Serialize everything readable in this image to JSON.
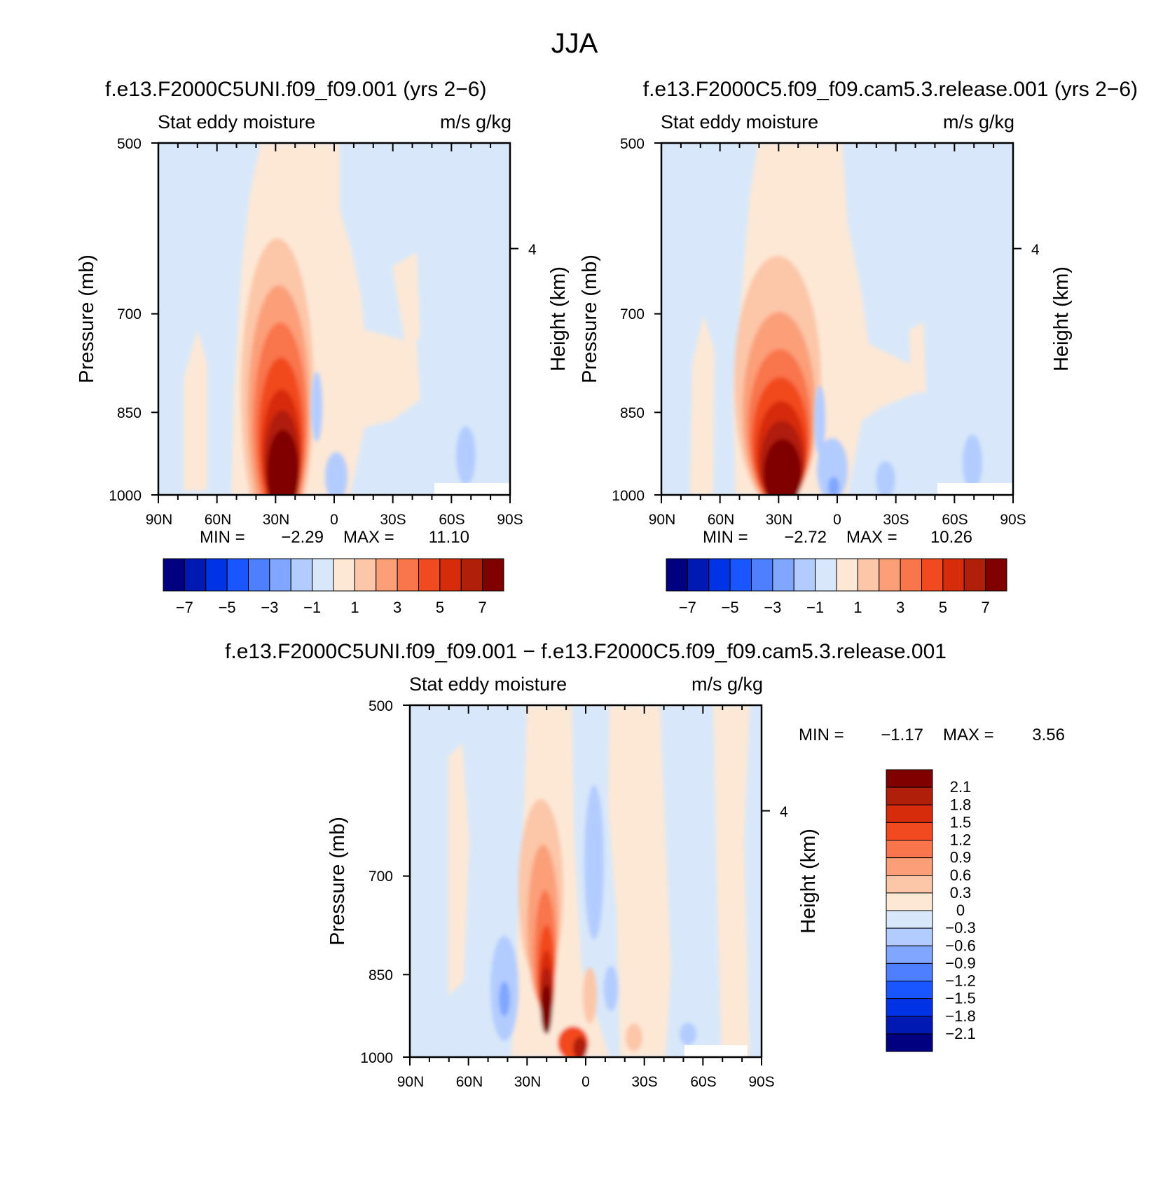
{
  "figure": {
    "title": "JJA",
    "min_label": "MIN =",
    "max_label": "MAX =",
    "pressure_axis_label": "Pressure (mb)",
    "height_axis_label": "Height (km)"
  },
  "scales": {
    "main": {
      "colors": [
        "#000080",
        "#0019b3",
        "#0033e6",
        "#1a56ff",
        "#4d7fff",
        "#80a6ff",
        "#b3ccff",
        "#d8e8fa",
        "#fde8d6",
        "#fcc6a8",
        "#fb9f79",
        "#f9754c",
        "#f24a1f",
        "#d72c0c",
        "#b01f0a",
        "#800000"
      ],
      "tick_labels": [
        "−7",
        "−5",
        "−3",
        "−1",
        "1",
        "3",
        "5",
        "7"
      ]
    },
    "diff": {
      "colors": [
        "#000080",
        "#0019b3",
        "#0033e6",
        "#1a56ff",
        "#4d7fff",
        "#80a6ff",
        "#b3ccff",
        "#d8e8fa",
        "#fde8d6",
        "#fcc6a8",
        "#fb9f79",
        "#f9754c",
        "#f24a1f",
        "#d72c0c",
        "#b01f0a",
        "#800000"
      ],
      "tick_labels": [
        "−2.1",
        "−1.8",
        "−1.5",
        "−1.2",
        "−0.9",
        "−0.6",
        "−0.3",
        "0",
        "0.3",
        "0.6",
        "0.9",
        "1.2",
        "1.5",
        "1.8",
        "2.1"
      ]
    }
  },
  "chart_data": [
    {
      "type": "heatmap",
      "title": "f.e13.F2000C5UNI.f09_f09.001 (yrs 2−6)",
      "left_label": "Stat eddy moisture",
      "right_label": "m/s g/kg",
      "x_tick_labels": [
        "90N",
        "60N",
        "30N",
        "0",
        "30S",
        "60S",
        "90S"
      ],
      "y_tick_labels": [
        "500",
        "700",
        "850",
        "1000"
      ],
      "y_right_tick_labels": [
        "4"
      ],
      "ylabel": "Pressure (mb)",
      "ylabel_right": "Height (km)",
      "min": "−2.29",
      "max": "11.10",
      "colorbar": "main",
      "max_location": {
        "lat": 30,
        "pressure": 950
      }
    },
    {
      "type": "heatmap",
      "title": "f.e13.F2000C5.f09_f09.cam5.3.release.001 (yrs 2−6)",
      "left_label": "Stat eddy moisture",
      "right_label": "m/s g/kg",
      "x_tick_labels": [
        "90N",
        "60N",
        "30N",
        "0",
        "30S",
        "60S",
        "90S"
      ],
      "y_tick_labels": [
        "500",
        "700",
        "850",
        "1000"
      ],
      "y_right_tick_labels": [
        "4"
      ],
      "ylabel": "Pressure (mb)",
      "ylabel_right": "Height (km)",
      "min": "−2.72",
      "max": "10.26",
      "colorbar": "main",
      "max_location": {
        "lat": 30,
        "pressure": 950
      }
    },
    {
      "type": "heatmap",
      "title": "f.e13.F2000C5UNI.f09_f09.001 − f.e13.F2000C5.f09_f09.cam5.3.release.001",
      "left_label": "Stat eddy moisture",
      "right_label": "m/s g/kg",
      "x_tick_labels": [
        "90N",
        "60N",
        "30N",
        "0",
        "30S",
        "60S",
        "90S"
      ],
      "y_tick_labels": [
        "500",
        "700",
        "850",
        "1000"
      ],
      "y_right_tick_labels": [
        "4"
      ],
      "ylabel": "Pressure (mb)",
      "ylabel_right": "Height (km)",
      "min": "−1.17",
      "max": "3.56",
      "colorbar": "diff",
      "max_location": {
        "lat": 20,
        "pressure": 930
      }
    }
  ]
}
